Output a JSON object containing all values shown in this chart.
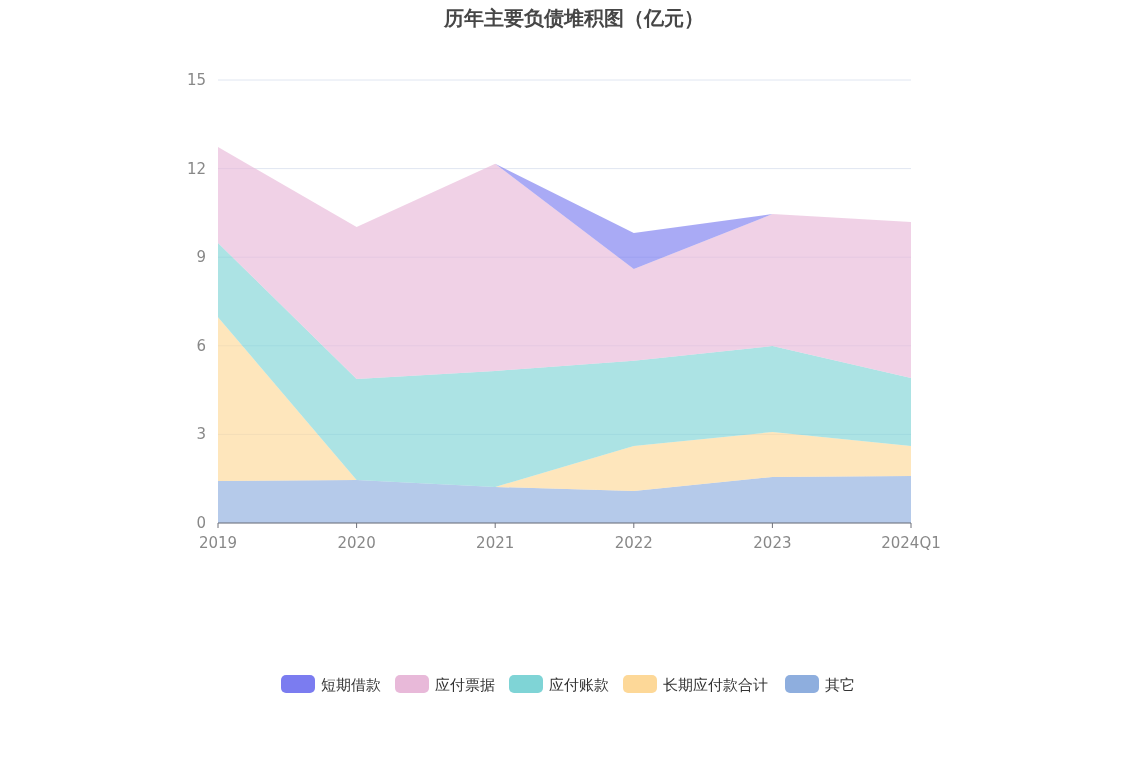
{
  "chart_data": {
    "type": "area",
    "title": "历年主要负债堆积图（亿元）",
    "stacked": true,
    "grid": "y",
    "legend": "bottom",
    "categories": [
      "2019",
      "2020",
      "2021",
      "2022",
      "2023",
      "2024Q1"
    ],
    "ylim": [
      0,
      15
    ],
    "yticks": [
      0,
      3,
      6,
      9,
      12,
      15
    ],
    "series": [
      {
        "name": "其它",
        "color": "#8eaede",
        "values": [
          1.42,
          1.46,
          1.22,
          1.08,
          1.56,
          1.59
        ]
      },
      {
        "name": "长期应付款合计",
        "color": "#fdd898",
        "values": [
          5.55,
          0,
          0,
          1.53,
          1.52,
          1.02
        ]
      },
      {
        "name": "应付账款",
        "color": "#7fd4d6",
        "values": [
          2.51,
          3.42,
          3.93,
          2.88,
          2.91,
          2.3
        ]
      },
      {
        "name": "应付票据",
        "color": "#e8b9d9",
        "values": [
          3.25,
          5.14,
          7.01,
          3.11,
          4.47,
          5.28
        ]
      },
      {
        "name": "短期借款",
        "color": "#7b7cf0",
        "values": [
          0,
          0,
          0,
          1.22,
          0,
          0
        ]
      }
    ]
  }
}
